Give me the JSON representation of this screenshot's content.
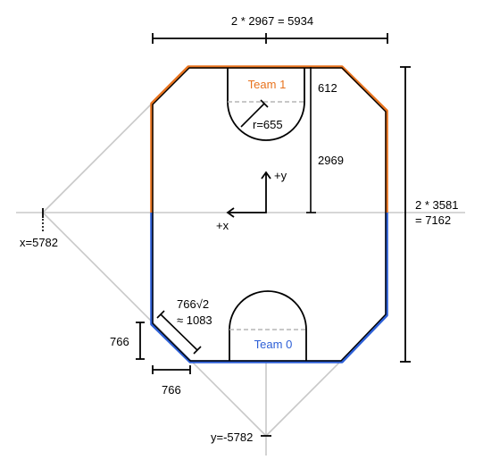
{
  "colors": {
    "team1": "#e8731e",
    "team0": "#2d5fd6",
    "guide": "#c8c8c8",
    "ink": "#000000",
    "dashed": "#b5b5b5"
  },
  "labels": {
    "width": "2 * 2967 = 5934",
    "height_line1": "2 * 3581",
    "height_line2": "= 7162",
    "team1": "Team 1",
    "team0": "Team 0",
    "dim_612": "612",
    "radius": "r=655",
    "dim_2969": "2969",
    "axis_y": "+y",
    "axis_x": "+x",
    "x_focus": "x=5782",
    "y_focus": "y=-5782",
    "diag_line1": "766√2",
    "diag_line2": "≈ 1083",
    "corner_v": "766",
    "corner_h": "766"
  }
}
